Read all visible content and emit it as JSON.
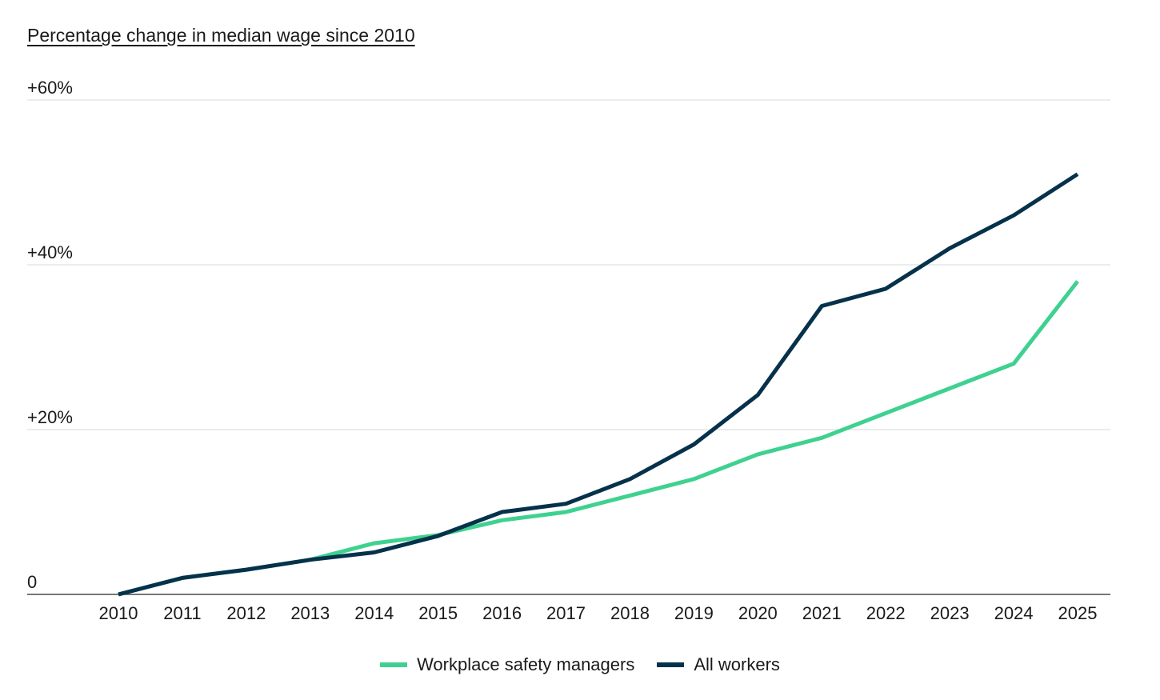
{
  "chart_data": {
    "type": "line",
    "title": "Percentage change in median wage since 2010",
    "xlabel": "",
    "ylabel": "",
    "x": [
      2010,
      2011,
      2012,
      2013,
      2014,
      2015,
      2016,
      2017,
      2018,
      2019,
      2020,
      2021,
      2022,
      2023,
      2024,
      2025
    ],
    "ylim": [
      0,
      60
    ],
    "yticks": [
      0,
      20,
      40,
      60
    ],
    "ytick_labels": [
      "0",
      "+20%",
      "+40%",
      "+60%"
    ],
    "grid": true,
    "legend_position": "bottom-center",
    "series": [
      {
        "name": "Workplace safety managers",
        "color": "#3fd190",
        "values": [
          0,
          2,
          3,
          4.2,
          6.2,
          7.2,
          9,
          10,
          12,
          14,
          17,
          19,
          22,
          25,
          28,
          38
        ]
      },
      {
        "name": "All workers",
        "color": "#05324a",
        "values": [
          0,
          2,
          3,
          4.2,
          5.1,
          7.1,
          10,
          11,
          14,
          18.2,
          24.2,
          35,
          37.1,
          42,
          46,
          51
        ]
      }
    ]
  }
}
